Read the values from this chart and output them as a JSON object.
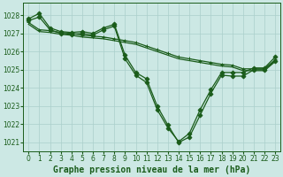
{
  "title": "Graphe pression niveau de la mer (hPa)",
  "bg_color": "#cce8e4",
  "grid_color": "#aacfcb",
  "line_color": "#1a5c1a",
  "marker_color": "#1a5c1a",
  "xlim": [
    -0.5,
    23.5
  ],
  "ylim": [
    1020.5,
    1028.7
  ],
  "yticks": [
    1021,
    1022,
    1023,
    1024,
    1025,
    1026,
    1027,
    1028
  ],
  "xticks": [
    0,
    1,
    2,
    3,
    4,
    5,
    6,
    7,
    8,
    9,
    10,
    11,
    12,
    13,
    14,
    15,
    16,
    17,
    18,
    19,
    20,
    21,
    22,
    23
  ],
  "series": [
    {
      "x": [
        0,
        1,
        2,
        3,
        4,
        5,
        6,
        7,
        8,
        9,
        10,
        11,
        12,
        13,
        14,
        15,
        16,
        17,
        18,
        19,
        20,
        21,
        22,
        23
      ],
      "y": [
        1027.8,
        1028.1,
        1027.3,
        1027.1,
        1027.05,
        1027.1,
        1027.0,
        1027.3,
        1027.5,
        1025.8,
        1024.85,
        1024.5,
        1023.0,
        1021.95,
        1021.0,
        1021.3,
        1022.5,
        1023.7,
        1024.7,
        1024.65,
        1024.65,
        1025.0,
        1025.0,
        1025.5
      ],
      "marker": "D",
      "markersize": 2.5,
      "linewidth": 0.9
    },
    {
      "x": [
        0,
        1,
        2,
        3,
        4,
        5,
        6,
        7,
        8,
        9,
        10,
        11,
        12,
        13,
        14,
        15,
        16,
        17,
        18,
        19,
        20,
        21,
        22,
        23
      ],
      "y": [
        1027.7,
        1027.9,
        1027.2,
        1027.0,
        1026.95,
        1027.0,
        1026.9,
        1027.2,
        1027.4,
        1025.6,
        1024.7,
        1024.3,
        1022.8,
        1021.8,
        1021.05,
        1021.5,
        1022.8,
        1023.9,
        1024.85,
        1024.85,
        1024.85,
        1025.1,
        1025.1,
        1025.7
      ],
      "marker": "D",
      "markersize": 2.5,
      "linewidth": 0.9
    },
    {
      "x": [
        0,
        1,
        2,
        3,
        4,
        5,
        6,
        7,
        8,
        9,
        10,
        11,
        12,
        13,
        14,
        15,
        16,
        17,
        18,
        19,
        20,
        21,
        22,
        23
      ],
      "y": [
        1027.6,
        1027.2,
        1027.15,
        1027.05,
        1027.0,
        1026.9,
        1026.85,
        1026.8,
        1026.7,
        1026.6,
        1026.5,
        1026.3,
        1026.1,
        1025.9,
        1025.7,
        1025.6,
        1025.5,
        1025.4,
        1025.3,
        1025.25,
        1025.05,
        1025.05,
        1025.05,
        1025.55
      ],
      "marker": "+",
      "markersize": 3.5,
      "linewidth": 0.9
    },
    {
      "x": [
        0,
        1,
        2,
        3,
        4,
        5,
        6,
        7,
        8,
        9,
        10,
        11,
        12,
        13,
        14,
        15,
        16,
        17,
        18,
        19,
        20,
        21,
        22,
        23
      ],
      "y": [
        1027.5,
        1027.1,
        1027.05,
        1026.95,
        1026.9,
        1026.8,
        1026.75,
        1026.7,
        1026.6,
        1026.5,
        1026.4,
        1026.2,
        1026.0,
        1025.8,
        1025.6,
        1025.5,
        1025.4,
        1025.3,
        1025.2,
        1025.15,
        1024.95,
        1024.95,
        1024.95,
        1025.45
      ],
      "marker": "none",
      "markersize": 0,
      "linewidth": 0.9
    }
  ],
  "title_fontsize": 7,
  "tick_fontsize": 5.5
}
